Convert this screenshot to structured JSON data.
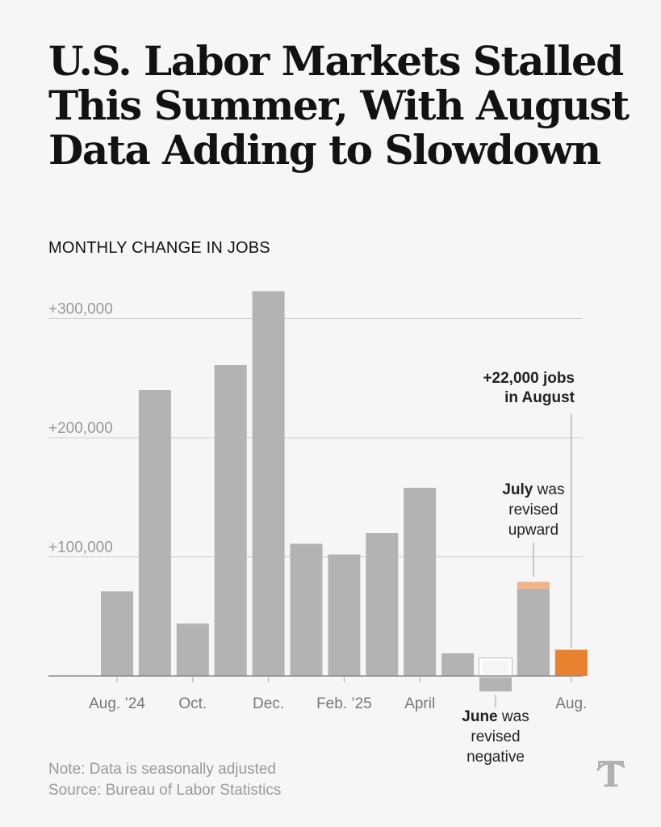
{
  "title_lines": [
    "U.S. Labor Markets Stalled",
    "This Summer, With August",
    "Data Adding to Slowdown"
  ],
  "subtitle": "MONTHLY CHANGE IN JOBS",
  "note": "Note: Data is seasonally adjusted",
  "source": "Source: Bureau of Labor Statistics",
  "logo": "nyt-logo",
  "colors": {
    "bar": "#b3b3b3",
    "highlight": "#e8822e",
    "revision_up": "#f2b487",
    "revision_outline": "#ffffff",
    "grid": "#cccccc",
    "axis": "#888888"
  },
  "annotations": {
    "august": {
      "value": "+22,000 jobs",
      "rest": "in August"
    },
    "july": {
      "bold": "July",
      "rest": "was",
      "line2": "revised",
      "line3": "upward"
    },
    "june": {
      "bold": "June",
      "rest": "was",
      "line2": "revised",
      "line3": "negative"
    }
  },
  "chart_data": {
    "type": "bar",
    "categories": [
      "Aug. 2024",
      "Sep. 2024",
      "Oct. 2024",
      "Nov. 2024",
      "Dec. 2024",
      "Jan. 2025",
      "Feb. 2025",
      "Mar. 2025",
      "Apr. 2025",
      "May 2025",
      "Jun. 2025",
      "Jul. 2025",
      "Aug. 2025"
    ],
    "values": [
      71000,
      240000,
      44000,
      261000,
      323000,
      111000,
      102000,
      120000,
      158000,
      19000,
      -13000,
      79000,
      22000
    ],
    "previous_estimates": {
      "Jun. 2025": 14000,
      "Jul. 2025": 73000
    },
    "x_tick_labels": [
      "Aug. ’24",
      "",
      "Oct.",
      "",
      "Dec.",
      "",
      "Feb. ’25",
      "",
      "April",
      "",
      "",
      "",
      "Aug."
    ],
    "y_ticks": [
      100000,
      200000,
      300000
    ],
    "y_tick_labels": [
      "+100,000",
      "+200,000",
      "+300,000"
    ],
    "ylim": [
      -20000,
      330000
    ],
    "highlight_category": "Aug. 2025",
    "grid": true
  }
}
